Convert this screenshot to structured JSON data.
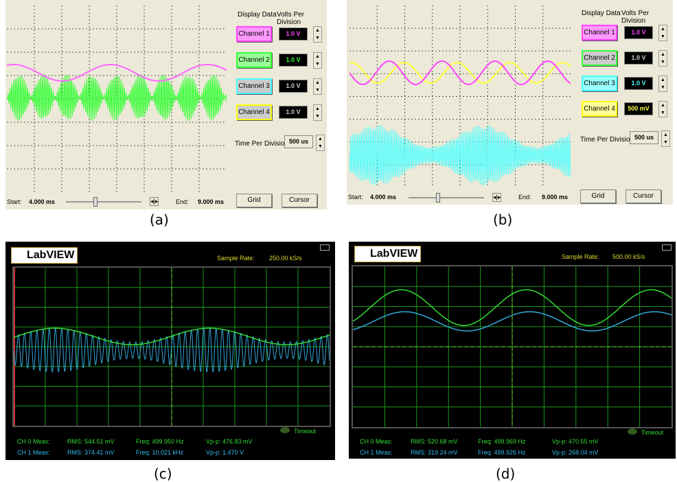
{
  "panel_a": {
    "caption": "(a)",
    "display_data": "Display Data",
    "volts_per_division": "Volts Per Division",
    "channels": [
      {
        "label": "Channel 1",
        "volts": "1.0 V",
        "color": "#ff44ff"
      },
      {
        "label": "Channel 2",
        "volts": "1.0 V",
        "color": "#33ff33"
      },
      {
        "label": "Channel 3",
        "volts": "1.0 V",
        "color": "#44ffff"
      },
      {
        "label": "Channel 4",
        "volts": "1.0 V",
        "color": "#ffff00"
      }
    ],
    "time_per_division_label": "Time Per Division:",
    "time_per_division": "500 us",
    "start_label": "Start:",
    "start": "4.000 ms",
    "end_label": "End:",
    "end": "9.000 ms",
    "grid": "Grid",
    "cursor": "Cursor"
  },
  "panel_b": {
    "caption": "(b)",
    "display_data": "Display Data",
    "volts_per_division": "Volts Per Division",
    "channels": [
      {
        "label": "Channel 1",
        "volts": "1.0 V"
      },
      {
        "label": "Channel 2",
        "volts": "1.0 V"
      },
      {
        "label": "Channel 3",
        "volts": "1.0 V"
      },
      {
        "label": "Channel 4",
        "volts": "500 mV"
      }
    ],
    "time_per_division_label": "Time Per Division:",
    "time_per_division": "500 us",
    "start_label": "Start:",
    "start": "4.000 ms",
    "end_label": "End:",
    "end": "9.000 ms",
    "grid": "Grid",
    "cursor": "Cursor"
  },
  "panel_c": {
    "caption": "(c)",
    "logo": "LabVIEW",
    "sample_rate_label": "Sample Rate:",
    "sample_rate": "250.00 kS/s",
    "timeout": "Timeout",
    "rows": [
      {
        "ch": "CH 0 Meas:",
        "rms": "RMS:  544.51 mV",
        "freq": "Freq:  499.950 Hz",
        "vpp": "Vp-p:  476.83 mV",
        "color": "#33dd33"
      },
      {
        "ch": "CH 1 Meas:",
        "rms": "RMS:  374.41 mV",
        "freq": "Freq:  10.021 kHz",
        "vpp": "Vp-p:  1.470 V",
        "color": "#33bbee"
      }
    ]
  },
  "panel_d": {
    "caption": "(d)",
    "logo": "LabVIEW",
    "sample_rate_label": "Sample Rate:",
    "sample_rate": "500.00 kS/s",
    "timeout": "Timeout",
    "rows": [
      {
        "ch": "CH 0 Meas:",
        "rms": "RMS:  520.68 mV",
        "freq": "Freq:  499.969 Hz",
        "vpp": "Vp-p:  470.55 mV"
      },
      {
        "ch": "CH 1 Meas:",
        "rms": "RMS:  319.24 mV",
        "freq": "Freq:  499.926 Hz",
        "vpp": "Vp-p:  268.04 mV"
      }
    ]
  }
}
